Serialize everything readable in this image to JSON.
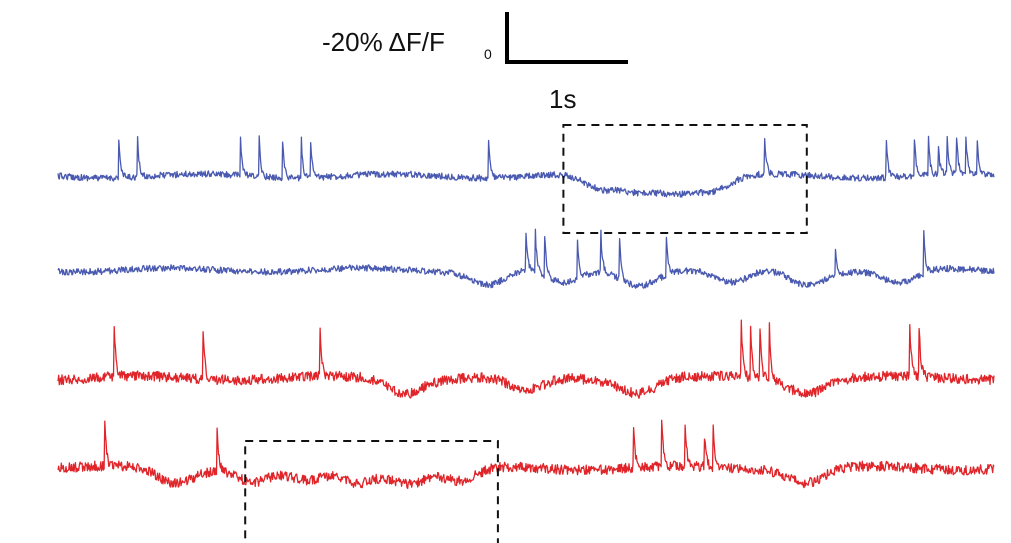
{
  "chart_data": {
    "type": "line",
    "title": "",
    "scale_bar": {
      "y_label": "-20% ΔF/F",
      "y_label_subscript": "0",
      "x_label": "1s"
    },
    "traces": [
      {
        "color": "#4a5ab0",
        "spike_times": [
          0.65,
          0.85,
          1.95,
          2.15,
          2.4,
          2.6,
          2.7,
          4.6,
          7.55,
          8.85,
          9.15,
          9.3,
          9.4,
          9.5,
          9.6,
          9.7,
          9.82
        ],
        "slow_dips": [
          5.8,
          6.2,
          6.6,
          7.0
        ]
      },
      {
        "color": "#4a5ab0",
        "spike_times": [
          5.0,
          5.1,
          5.2,
          5.55,
          5.8,
          6.0,
          6.5,
          8.3,
          9.25
        ],
        "slow_dips": [
          4.6,
          5.4,
          6.2,
          7.2,
          8.0,
          9.0
        ]
      },
      {
        "color": "#e0252a",
        "spike_times": [
          0.6,
          1.55,
          2.8,
          7.3,
          7.4,
          7.5,
          7.6,
          9.1,
          9.2
        ],
        "slow_dips": [
          3.7,
          5.0,
          6.2,
          8.0
        ]
      },
      {
        "color": "#e0252a",
        "spike_times": [
          0.5,
          1.7,
          6.15,
          6.45,
          6.7,
          6.9,
          7.0
        ],
        "slow_dips": [
          1.25,
          2.1,
          2.65,
          3.2,
          3.75,
          4.3,
          8.0
        ]
      }
    ],
    "dashed_boxes": [
      {
        "trace_span": [
          1,
          2
        ],
        "x_range": [
          5.4,
          8.0
        ]
      },
      {
        "trace_span": [
          4,
          4
        ],
        "x_range": [
          2.0,
          4.7
        ]
      }
    ],
    "grid": false,
    "legend": "none"
  }
}
